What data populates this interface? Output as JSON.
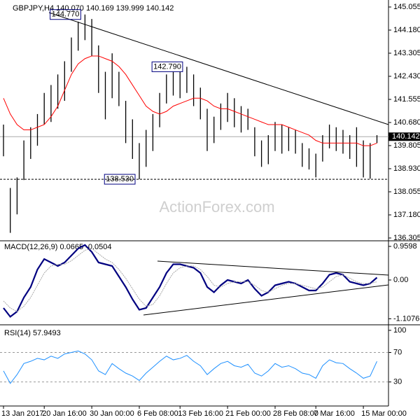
{
  "chart_data": [
    {
      "type": "ohlc",
      "title": "GBPJPY,H4  140.070 140.169 139.999 140.142",
      "watermark": "ActionForex.com",
      "color": "#000000",
      "high": [
        140.6,
        138.2,
        138.6,
        140.0,
        140.5,
        141.0,
        141.8,
        142.1,
        142.5,
        143.0,
        143.9,
        144.5,
        144.77,
        144.6,
        143.6,
        142.6,
        143.3,
        142.6,
        141.5,
        140.8,
        139.9,
        140.4,
        141.0,
        141.8,
        142.5,
        142.6,
        142.6,
        142.79,
        142.5,
        142.0,
        141.2,
        140.9,
        141.4,
        141.8,
        141.6,
        141.3,
        141.2,
        140.5,
        140.0,
        140.2,
        140.7,
        140.6,
        140.5,
        140.4,
        139.9,
        139.7,
        139.5,
        140.2,
        140.6,
        140.5,
        140.4,
        140.2,
        140.5,
        140.0,
        139.9,
        140.2
      ],
      "low": [
        139.4,
        136.5,
        137.2,
        138.5,
        139.3,
        139.8,
        140.6,
        140.7,
        141.2,
        141.5,
        142.6,
        143.4,
        143.8,
        143.2,
        141.8,
        140.8,
        141.6,
        141.3,
        139.9,
        139.3,
        138.53,
        139.0,
        139.6,
        140.5,
        141.4,
        141.7,
        141.6,
        141.8,
        141.3,
        140.8,
        139.6,
        139.9,
        140.4,
        140.7,
        140.5,
        140.3,
        140.4,
        139.4,
        139.0,
        139.1,
        139.6,
        139.5,
        139.6,
        139.5,
        139.0,
        138.9,
        138.6,
        139.2,
        139.7,
        139.6,
        139.5,
        139.3,
        139.0,
        138.6,
        138.55,
        139.9
      ],
      "ma": {
        "color": "#ff0000",
        "values": [
          141.6,
          141.0,
          140.6,
          140.4,
          140.4,
          140.5,
          140.6,
          140.9,
          141.3,
          141.9,
          142.5,
          142.9,
          143.1,
          143.2,
          143.2,
          143.1,
          143.0,
          142.8,
          142.5,
          142.1,
          141.7,
          141.3,
          141.1,
          141.0,
          141.1,
          141.3,
          141.4,
          141.5,
          141.6,
          141.6,
          141.5,
          141.3,
          141.2,
          141.2,
          141.1,
          141.0,
          140.9,
          140.8,
          140.7,
          140.6,
          140.6,
          140.6,
          140.5,
          140.4,
          140.3,
          140.2,
          140.0,
          139.9,
          139.9,
          139.9,
          139.9,
          139.9,
          139.9,
          139.8,
          139.8,
          139.9
        ]
      },
      "annotations": [
        {
          "value": 144.77,
          "label": "144.770"
        },
        {
          "value": 142.79,
          "label": "142.790"
        }
      ],
      "support": {
        "value": 138.53,
        "label": "138.530"
      },
      "current": {
        "value": 140.142,
        "label": "140.142"
      },
      "ylim": [
        136.225,
        145.214
      ],
      "yticks": [
        145.055,
        {
          "value": 144.18,
          "label": "144.180"
        },
        143.305,
        {
          "value": 142.43,
          "label": "142.430"
        },
        141.555,
        {
          "value": 140.68,
          "label": "140.680"
        },
        139.805,
        {
          "value": 138.93,
          "label": "138.930"
        },
        138.055,
        {
          "value": 137.18,
          "label": "137.180"
        },
        136.305
      ]
    },
    {
      "type": "line",
      "title": "MACD(12,26,9) 0.0665 -0.0504",
      "series": [
        {
          "color": "#000080",
          "style": "solid",
          "values": [
            -0.8,
            -1.05,
            -0.9,
            -0.5,
            -0.2,
            0.3,
            0.6,
            0.5,
            0.4,
            0.5,
            0.7,
            0.9,
            1.0,
            0.8,
            0.5,
            0.45,
            0.4,
            0.1,
            -0.2,
            -0.55,
            -0.85,
            -0.8,
            -0.5,
            -0.2,
            0.2,
            0.45,
            0.45,
            0.4,
            0.35,
            0.2,
            -0.2,
            -0.35,
            -0.15,
            0.0,
            -0.05,
            -0.1,
            0.0,
            -0.25,
            -0.45,
            -0.35,
            -0.15,
            -0.1,
            -0.05,
            -0.1,
            -0.2,
            -0.3,
            -0.3,
            -0.1,
            0.15,
            0.2,
            0.15,
            -0.05,
            -0.1,
            -0.15,
            -0.1,
            0.07
          ]
        },
        {
          "color": "#a9a9a9",
          "style": "dotted",
          "values": [
            -0.6,
            -0.8,
            -0.9,
            -0.75,
            -0.5,
            -0.15,
            0.2,
            0.4,
            0.45,
            0.45,
            0.55,
            0.7,
            0.85,
            0.9,
            0.75,
            0.6,
            0.5,
            0.3,
            0.05,
            -0.25,
            -0.55,
            -0.75,
            -0.7,
            -0.45,
            -0.1,
            0.2,
            0.35,
            0.4,
            0.4,
            0.3,
            0.1,
            -0.15,
            -0.2,
            -0.1,
            -0.05,
            -0.05,
            -0.05,
            -0.15,
            -0.3,
            -0.35,
            -0.25,
            -0.15,
            -0.1,
            -0.1,
            -0.15,
            -0.2,
            -0.25,
            -0.2,
            -0.05,
            0.1,
            0.15,
            0.05,
            -0.05,
            -0.1,
            -0.1,
            -0.05
          ]
        }
      ],
      "ylim": [
        -1.24,
        1.1
      ],
      "yticks": [
        0.9598,
        {
          "value": 0,
          "label": "0.00"
        },
        -1.1076
      ]
    },
    {
      "type": "line",
      "title": "RSI(14) 57.9493",
      "series": [
        {
          "color": "#1e90ff",
          "style": "solid",
          "values": [
            45,
            28,
            40,
            55,
            58,
            62,
            60,
            65,
            62,
            68,
            70,
            72,
            68,
            60,
            45,
            40,
            55,
            48,
            42,
            38,
            32,
            42,
            50,
            58,
            65,
            60,
            62,
            66,
            58,
            52,
            40,
            48,
            55,
            58,
            52,
            50,
            54,
            42,
            38,
            45,
            55,
            50,
            52,
            48,
            42,
            40,
            35,
            52,
            60,
            56,
            55,
            48,
            42,
            35,
            38,
            58
          ]
        }
      ],
      "ylim": [
        -2.6,
        105.6
      ],
      "yticks": [
        100,
        70,
        30
      ],
      "categories": [
        "13 Jan 2017",
        null,
        null,
        null,
        null,
        null,
        "20 Jan 16:00",
        null,
        null,
        null,
        null,
        null,
        null,
        "30 Jan 00:00",
        null,
        null,
        null,
        null,
        null,
        null,
        "6 Feb 08:00",
        null,
        null,
        null,
        null,
        null,
        "13 Feb 16:00",
        null,
        null,
        null,
        null,
        null,
        null,
        "21 Feb 00:00",
        null,
        null,
        null,
        null,
        null,
        null,
        "28 Feb 08:00",
        null,
        null,
        null,
        null,
        null,
        "7 Mar 16:00",
        null,
        null,
        null,
        null,
        null,
        null,
        "15 Mar 00:00",
        null,
        null
      ]
    }
  ]
}
